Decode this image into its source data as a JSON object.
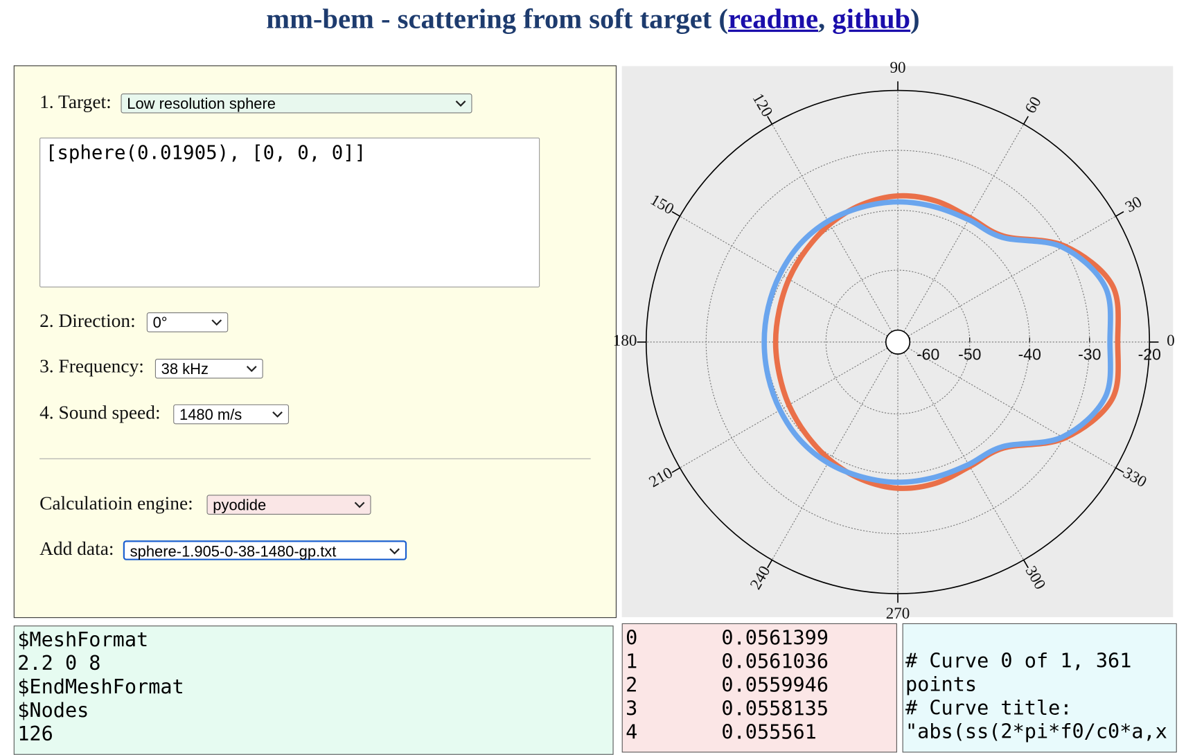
{
  "header": {
    "title": "mm-bem - scattering from soft target",
    "punctuation": [
      "(",
      ",",
      ")"
    ],
    "links": [
      "readme",
      "github"
    ]
  },
  "form": {
    "target_label": "1. Target:",
    "target": "Low resolution sphere",
    "geometry": "[sphere(0.01905), [0, 0, 0]]",
    "direction_label": "2. Direction:",
    "direction": "0°",
    "frequency_label": "3. Frequency:",
    "frequency": "38 kHz",
    "sound_speed_label": "4. Sound speed:",
    "sound_speed": "1480 m/s",
    "engine_label": "Calculatioin engine:",
    "engine": "pyodide",
    "add_data_label": "Add data:",
    "add_data": "sphere-1.905-0-38-1480-gp.txt"
  },
  "chart_data": {
    "type": "polar",
    "theta": [
      0,
      15,
      30,
      45,
      60,
      75,
      90,
      105,
      120,
      135,
      150,
      165,
      180,
      195,
      210,
      225,
      240,
      255,
      270,
      285,
      300,
      315,
      330,
      345
    ],
    "series": [
      {
        "color": "#ea7049",
        "values": [
          -25.3,
          -25.0,
          -29.9,
          -37.0,
          -38.0,
          -37.6,
          -37.6,
          -38.3,
          -39.3,
          -40.3,
          -41.0,
          -41.5,
          -41.6,
          -41.5,
          -41.0,
          -40.3,
          -39.3,
          -38.3,
          -37.6,
          -37.6,
          -38.0,
          -37.0,
          -29.9,
          -25.0
        ]
      },
      {
        "color": "#6aa5ee",
        "values": [
          -26.6,
          -26.2,
          -30.3,
          -37.3,
          -38.4,
          -38.6,
          -38.6,
          -38.7,
          -38.7,
          -38.9,
          -39.3,
          -39.6,
          -39.7,
          -39.6,
          -39.3,
          -38.9,
          -38.7,
          -38.7,
          -38.6,
          -38.6,
          -38.4,
          -37.3,
          -30.3,
          -26.2
        ]
      }
    ],
    "rlim": [
      -62,
      -20
    ],
    "rticks": [
      -60,
      -50,
      -40,
      -30,
      -20
    ],
    "thetaticks": [
      0,
      30,
      60,
      90,
      120,
      150,
      180,
      210,
      240,
      270,
      300,
      330
    ],
    "grid": true
  },
  "mesh_text": [
    "$MeshFormat",
    "2.2 0 8",
    "$EndMeshFormat",
    "$Nodes",
    "126"
  ],
  "data_table": {
    "rows": [
      [
        0,
        0.0561399
      ],
      [
        1,
        0.0561036
      ],
      [
        2,
        0.0559946
      ],
      [
        3,
        0.0558135
      ],
      [
        4,
        0.055561
      ]
    ]
  },
  "gp_text": [
    "# Curve 0 of 1, 361 points",
    "# Curve title: \"abs(ss(2*pi*f0/c0*a,x"
  ]
}
